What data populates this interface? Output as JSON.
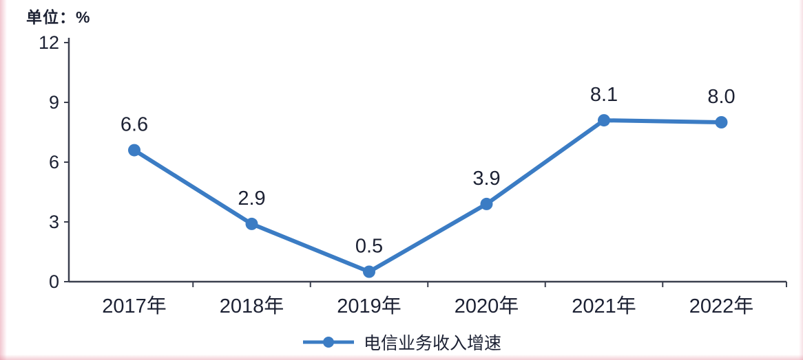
{
  "unit_label": "单位：%",
  "colors": {
    "line": "#3b7cc4",
    "marker": "#3b7cc4",
    "text": "#1c2133",
    "axis": "#3a3f4e"
  },
  "chart_data": {
    "type": "line",
    "title": "",
    "categories": [
      "2017年",
      "2018年",
      "2019年",
      "2020年",
      "2021年",
      "2022年"
    ],
    "values": [
      6.6,
      2.9,
      0.5,
      3.9,
      8.1,
      8.0
    ],
    "series_name": "电信业务收入增速",
    "xlabel": "",
    "ylabel": "单位：%",
    "ylim": [
      0,
      12
    ],
    "yticks": [
      0,
      3,
      6,
      9,
      12
    ],
    "grid": false,
    "legend_position": "bottom",
    "data_labels": [
      "6.6",
      "2.9",
      "0.5",
      "3.9",
      "8.1",
      "8.0"
    ]
  },
  "legend": {
    "label": "电信业务收入增速"
  }
}
